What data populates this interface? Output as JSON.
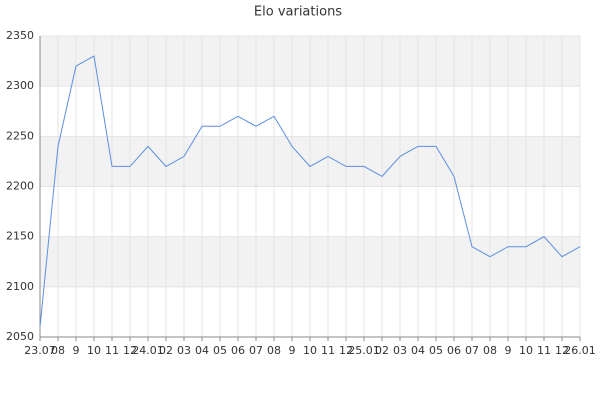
{
  "chart_data": {
    "type": "line",
    "title": "Elo variations",
    "categories": [
      "23.07",
      "08",
      "9",
      "10",
      "11",
      "12",
      "24.01",
      "02",
      "03",
      "04",
      "05",
      "06",
      "07",
      "08",
      "9",
      "10",
      "11",
      "12",
      "25.01",
      "02",
      "03",
      "04",
      "05",
      "06",
      "07",
      "08",
      "9",
      "10",
      "11",
      "12",
      "26.01"
    ],
    "series": [
      {
        "name": "Elo",
        "color": "#5b8fe0",
        "values": [
          2060,
          2240,
          2320,
          2330,
          2220,
          2220,
          2240,
          2220,
          2230,
          2260,
          2260,
          2270,
          2260,
          2270,
          2240,
          2220,
          2230,
          2220,
          2220,
          2210,
          2230,
          2240,
          2240,
          2210,
          2140,
          2130,
          2140,
          2140,
          2150,
          2130,
          2140
        ]
      }
    ],
    "ylim": [
      2050,
      2350
    ],
    "yticks": [
      2050,
      2100,
      2150,
      2200,
      2250,
      2300,
      2350
    ],
    "grid": true,
    "band_color": "#f2f2f2"
  }
}
